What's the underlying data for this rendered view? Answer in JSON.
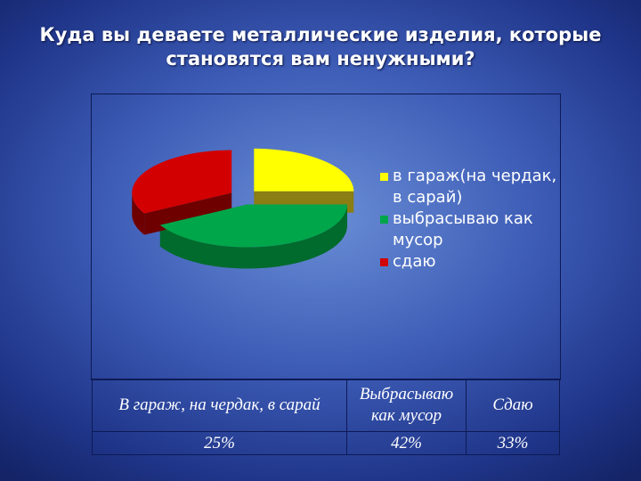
{
  "title": "Куда вы деваете металлические изделия, которые становятся вам ненужными?",
  "chart_data": {
    "type": "pie",
    "three_d": true,
    "series": [
      {
        "label": "в гараж(на чердак, в сарай)",
        "value": 25,
        "color": "#ffff00",
        "side_color": "#8a7e14"
      },
      {
        "label": "выбрасываю как мусор",
        "value": 42,
        "color": "#00a64a",
        "side_color": "#006b2c"
      },
      {
        "label": "сдаю",
        "value": 33,
        "color": "#d20000",
        "side_color": "#6e0000"
      }
    ],
    "legend_position": "right"
  },
  "table": {
    "headers": [
      "В гараж, на чердак, в сарай",
      "Выбрасываю как мусор",
      "Сдаю"
    ],
    "values": [
      "25%",
      "42%",
      "33%"
    ]
  }
}
